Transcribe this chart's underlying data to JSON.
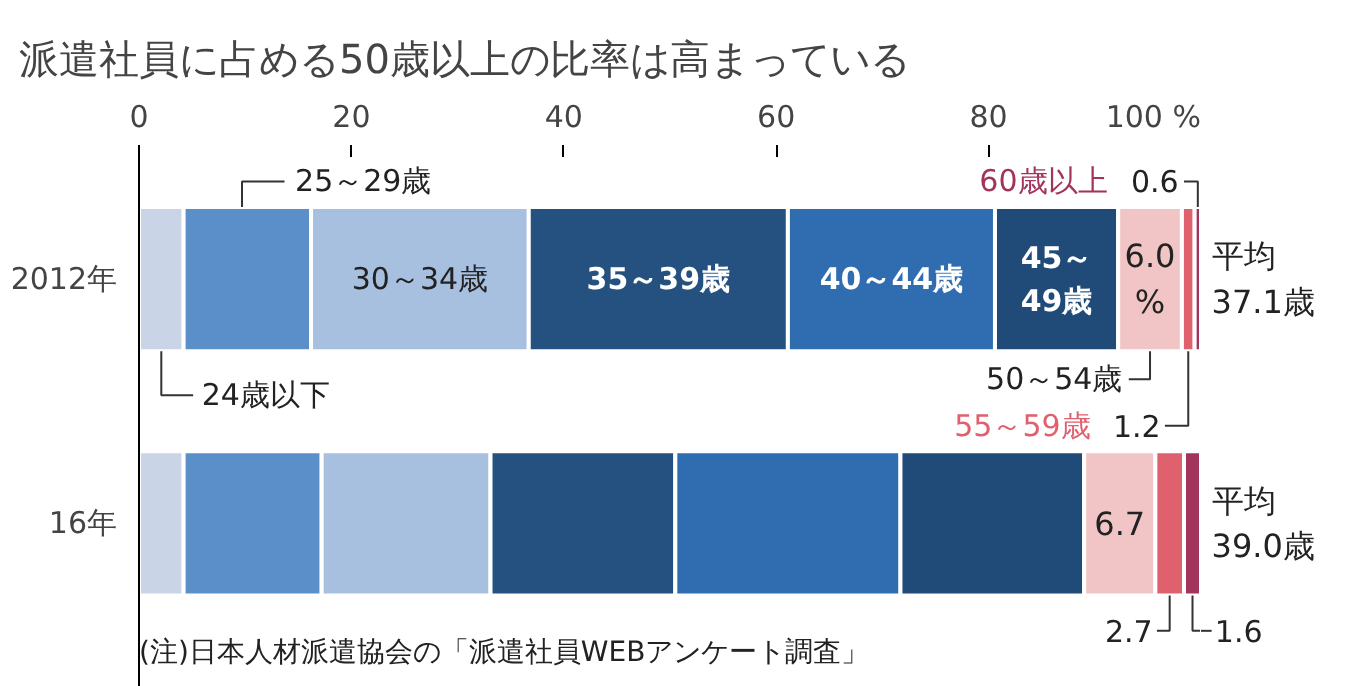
{
  "chart_data": {
    "type": "bar",
    "orientation": "horizontal",
    "stacked": true,
    "title": "派遣社員に占める50歳以上の比率は高まっている",
    "categories": [
      "2012年",
      "16年"
    ],
    "series": [
      {
        "name": "24歳以下",
        "color": "#c9d5e6",
        "values": [
          4.2,
          4.2
        ]
      },
      {
        "name": "25～29歳",
        "color": "#5b8fca",
        "values": [
          12.0,
          13.0
        ]
      },
      {
        "name": "30～34歳",
        "color": "#a8c0df",
        "values": [
          20.5,
          15.9
        ]
      },
      {
        "name": "35～39歳",
        "color": "#24517f",
        "values": [
          24.4,
          17.4
        ]
      },
      {
        "name": "40～44歳",
        "color": "#2f6cb0",
        "values": [
          19.5,
          21.2
        ]
      },
      {
        "name": "45～49歳",
        "color": "#204a77",
        "values": [
          11.6,
          17.3
        ]
      },
      {
        "name": "50～54歳",
        "color": "#f1c5c5",
        "values": [
          6.0,
          6.7
        ],
        "value_labels": [
          "6.0 %",
          "6.7"
        ]
      },
      {
        "name": "55～59歳",
        "color": "#e0616e",
        "values": [
          1.2,
          2.7
        ],
        "value_labels": [
          "1.2",
          "2.7"
        ]
      },
      {
        "name": "60歳以上",
        "color": "#a2345c",
        "values": [
          0.6,
          1.6
        ],
        "value_labels": [
          "0.6",
          "1.6"
        ]
      }
    ],
    "xlim": [
      0,
      100
    ],
    "xticks": [
      0,
      20,
      40,
      60,
      80,
      {
        "value": 100,
        "label": "100 %"
      }
    ],
    "grid": false,
    "legend": false,
    "annotations": [
      "平均 37.1歳",
      "平均 39.0歳",
      "(注)日本人材派遣協会の「派遣社員WEBアンケート調査」"
    ]
  }
}
